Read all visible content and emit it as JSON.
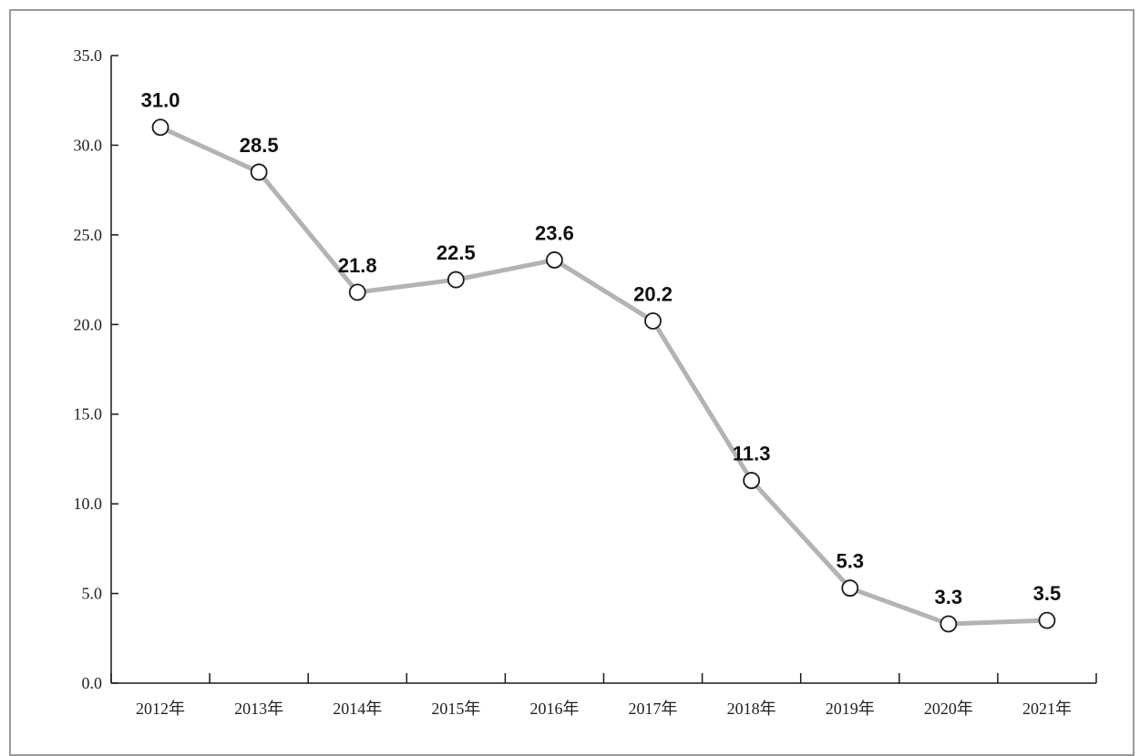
{
  "chart_data": {
    "type": "line",
    "categories": [
      "2012年",
      "2013年",
      "2014年",
      "2015年",
      "2016年",
      "2017年",
      "2018年",
      "2019年",
      "2020年",
      "2021年"
    ],
    "series": [
      {
        "values": [
          31.0,
          28.5,
          21.8,
          22.5,
          23.6,
          20.2,
          11.3,
          5.3,
          3.3,
          3.5
        ]
      }
    ],
    "data_labels": [
      "31.0",
      "28.5",
      "21.8",
      "22.5",
      "23.6",
      "20.2",
      "11.3",
      "5.3",
      "3.3",
      "3.5"
    ],
    "yticks": [
      "0.0",
      "5.0",
      "10.0",
      "15.0",
      "20.0",
      "25.0",
      "30.0",
      "35.0"
    ],
    "ylim": [
      0,
      35
    ],
    "title": "",
    "xlabel": "",
    "ylabel": "",
    "grid": false,
    "line_color": "#b3b3b6",
    "marker_fill": "#ffffff",
    "marker_stroke": "#1a1a1a"
  }
}
